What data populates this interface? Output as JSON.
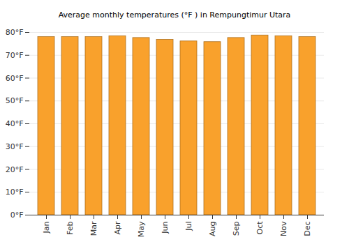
{
  "chart_data": {
    "type": "bar",
    "title": "Average monthly temperatures (°F ) in Rempungtimur Utara",
    "categories": [
      "Jan",
      "Feb",
      "Mar",
      "Apr",
      "May",
      "Jun",
      "Jul",
      "Aug",
      "Sep",
      "Oct",
      "Nov",
      "Dec"
    ],
    "values": [
      78,
      78,
      78,
      78.4,
      77.6,
      76.8,
      76.1,
      75.8,
      77.6,
      78.7,
      78.4,
      78
    ],
    "color": "#f9a12c",
    "ylim": [
      0,
      80
    ],
    "yticks": [
      {
        "value": 0,
        "label": "0°F"
      },
      {
        "value": 10,
        "label": "10°F"
      },
      {
        "value": 20,
        "label": "20°F"
      },
      {
        "value": 30,
        "label": "30°F"
      },
      {
        "value": 40,
        "label": "40°F"
      },
      {
        "value": 50,
        "label": "50°F"
      },
      {
        "value": 60,
        "label": "60°F"
      },
      {
        "value": 70,
        "label": "70°F"
      },
      {
        "value": 80,
        "label": "80°F"
      }
    ],
    "grid": true
  }
}
